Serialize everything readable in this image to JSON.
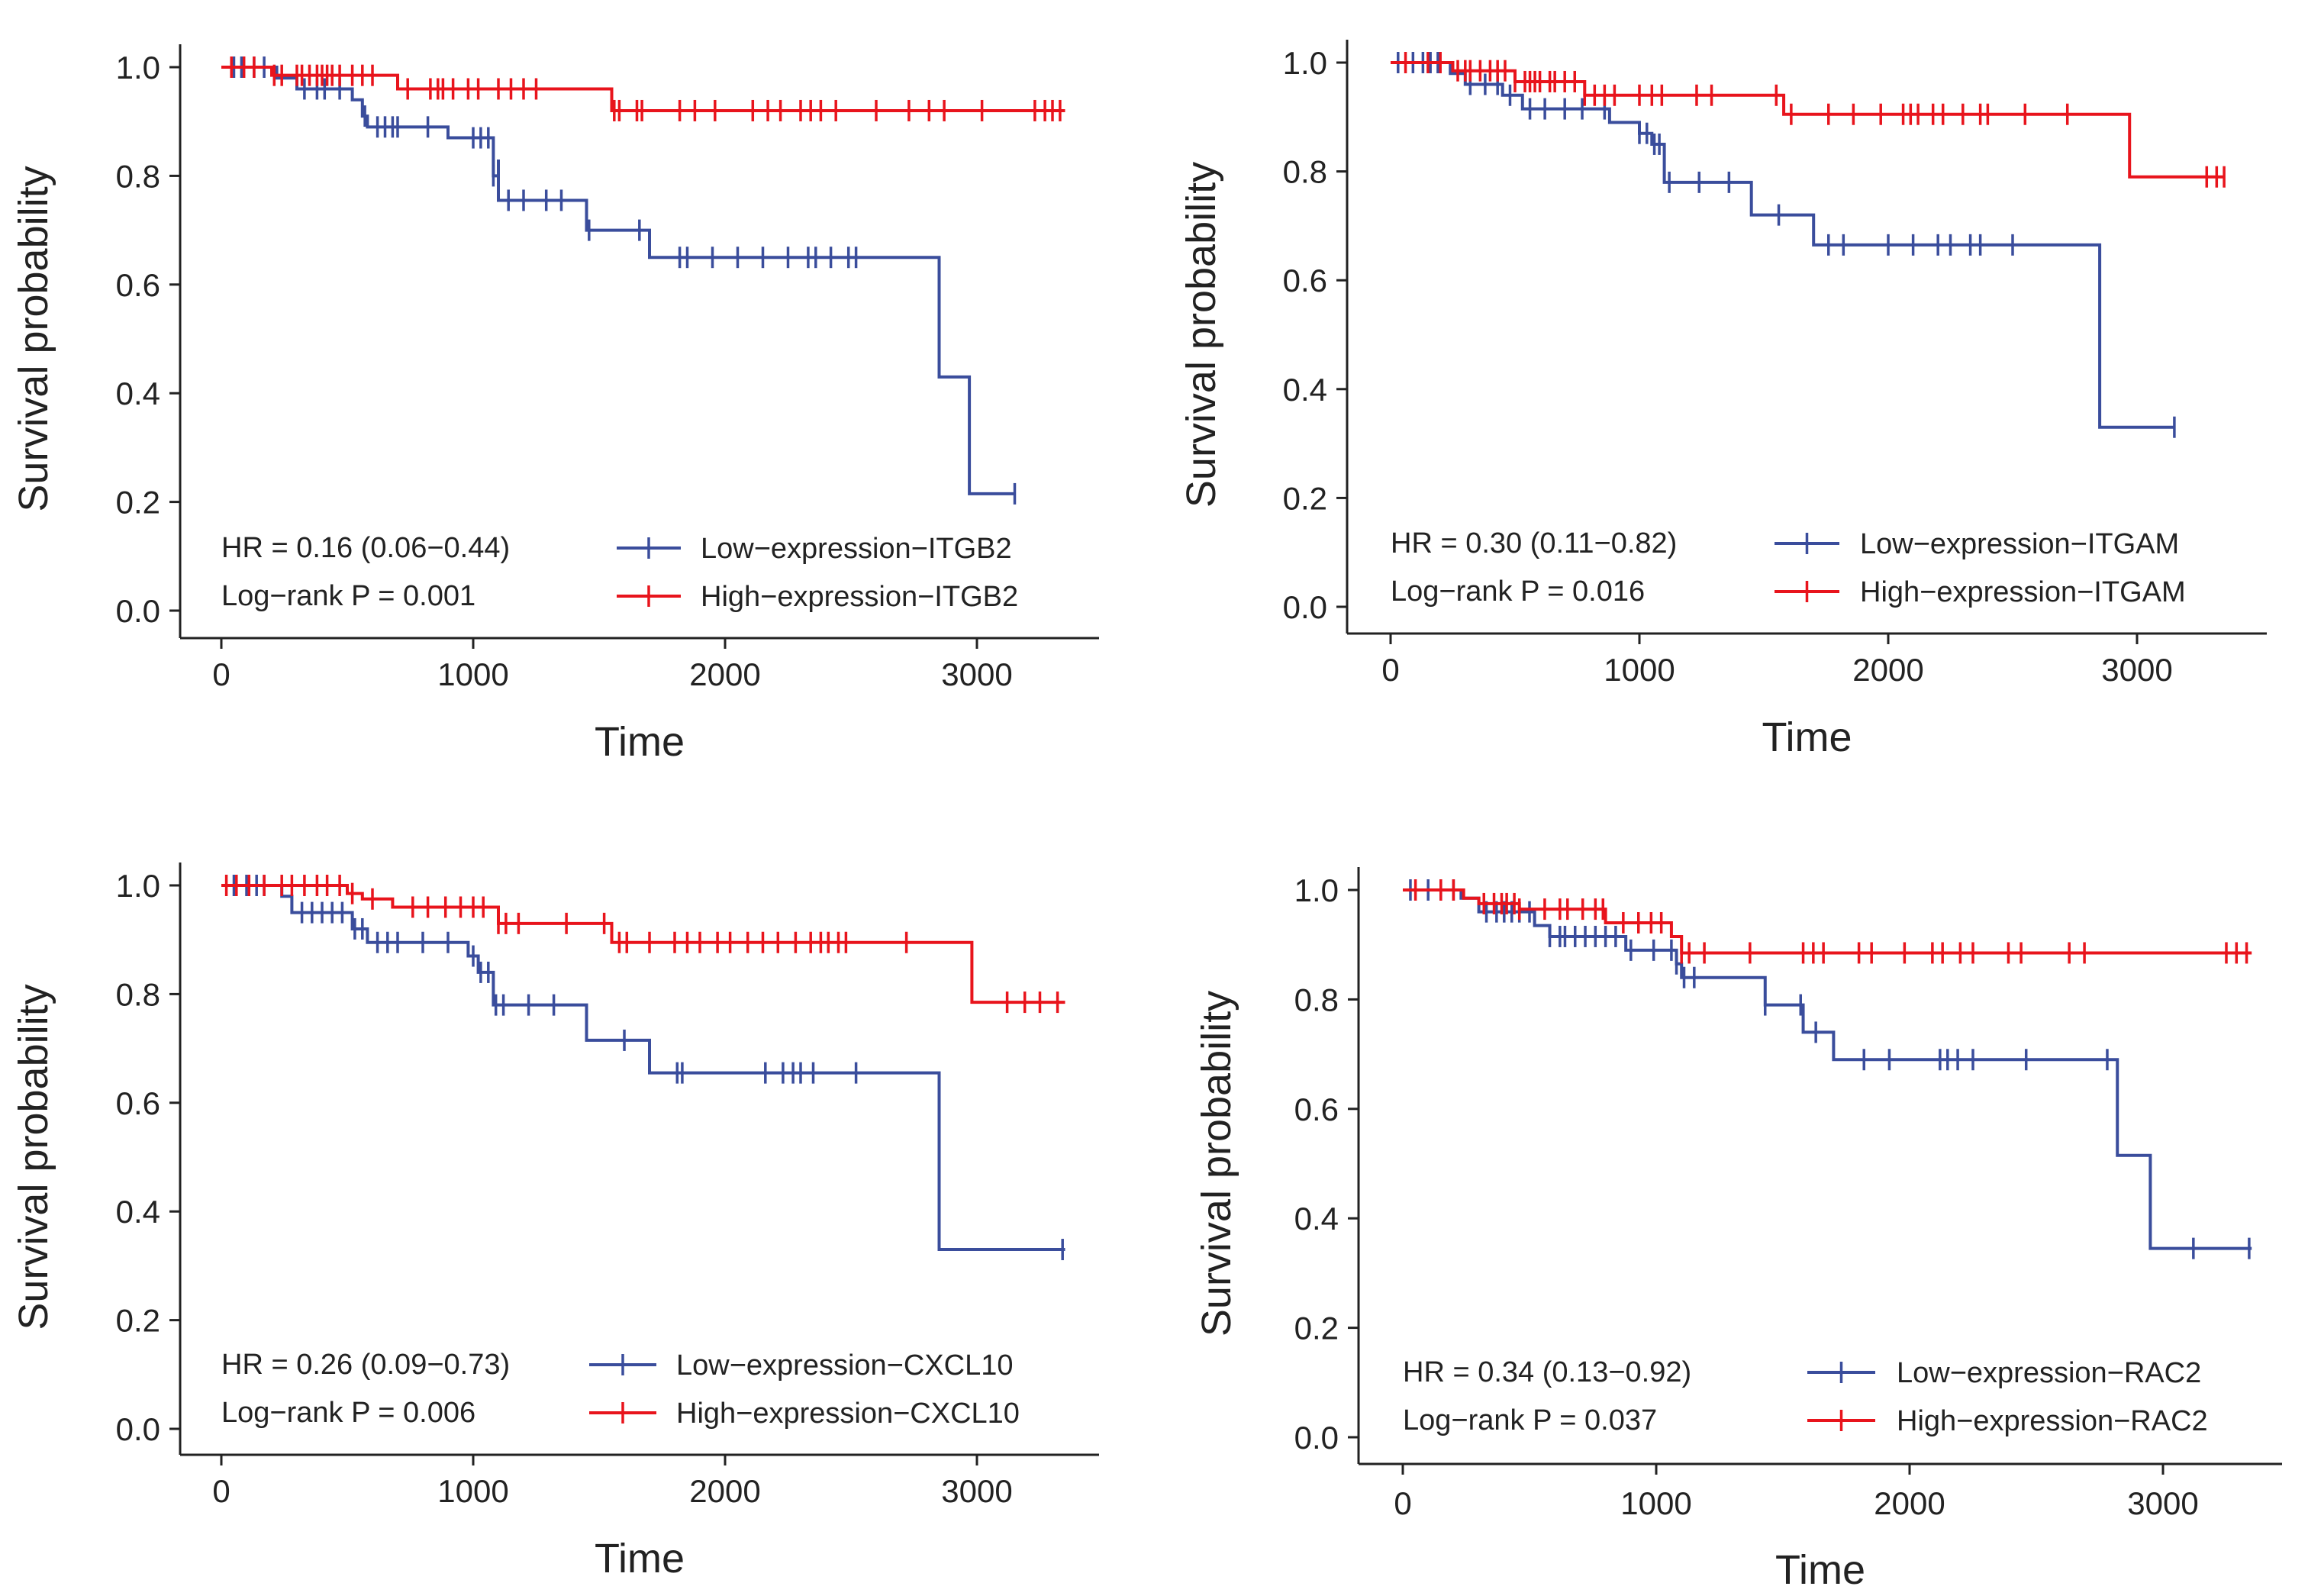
{
  "chart_data": [
    {
      "type": "line",
      "subtype": "kaplan-meier",
      "title": "",
      "xlabel": "Time",
      "ylabel": "Survival probability",
      "xlim": [
        0,
        3400
      ],
      "ylim": [
        0,
        1.0
      ],
      "xticks": [
        "0",
        "1000",
        "2000",
        "3000"
      ],
      "yticks": [
        "0.0",
        "0.2",
        "0.4",
        "0.6",
        "0.8",
        "1.0"
      ],
      "annotations": [
        "HR = 0.16 (0.06−0.44)",
        "Log−rank P = 0.001"
      ],
      "legend_position": "bottom-right",
      "series": [
        {
          "name": "Low−expression−ITGB2",
          "color": "#3a4d9c",
          "steps": [
            [
              0,
              1.0
            ],
            [
              220,
              0.98
            ],
            [
              300,
              0.96
            ],
            [
              520,
              0.94
            ],
            [
              560,
              0.91
            ],
            [
              580,
              0.89
            ],
            [
              900,
              0.87
            ],
            [
              1100,
              0.83
            ],
            [
              1080,
              0.8
            ],
            [
              1100,
              0.755
            ],
            [
              1450,
              0.7
            ],
            [
              1700,
              0.65
            ],
            [
              2850,
              0.43
            ],
            [
              2970,
              0.215
            ]
          ],
          "end": 3150,
          "censor": [
            50,
            80,
            130,
            170,
            330,
            380,
            410,
            470,
            570,
            620,
            650,
            680,
            700,
            820,
            1000,
            1030,
            1060,
            1080,
            1140,
            1200,
            1290,
            1350,
            1460,
            1660,
            1820,
            1850,
            1950,
            2050,
            2150,
            2250,
            2330,
            2360,
            2420,
            2490,
            2520,
            3150
          ]
        },
        {
          "name": "High−expression−ITGB2",
          "color": "#e8141c",
          "steps": [
            [
              0,
              1.0
            ],
            [
              200,
              0.985
            ],
            [
              700,
              0.96
            ],
            [
              1550,
              0.92
            ]
          ],
          "end": 3350,
          "censor": [
            40,
            90,
            130,
            210,
            240,
            300,
            320,
            350,
            380,
            400,
            420,
            440,
            470,
            520,
            560,
            600,
            740,
            830,
            860,
            880,
            920,
            980,
            1020,
            1100,
            1150,
            1200,
            1250,
            1560,
            1580,
            1650,
            1670,
            1820,
            1880,
            1960,
            2110,
            2170,
            2220,
            2300,
            2340,
            2380,
            2440,
            2600,
            2730,
            2810,
            2870,
            3020,
            3230,
            3270,
            3300,
            3330
          ]
        }
      ]
    },
    {
      "type": "line",
      "subtype": "kaplan-meier",
      "title": "",
      "xlabel": "Time",
      "ylabel": "Survival probability",
      "xlim": [
        0,
        3400
      ],
      "ylim": [
        0,
        1.0
      ],
      "xticks": [
        "0",
        "1000",
        "2000",
        "3000"
      ],
      "yticks": [
        "0.0",
        "0.2",
        "0.4",
        "0.6",
        "0.8",
        "1.0"
      ],
      "annotations": [
        "HR = 0.30 (0.11−0.82)",
        "Log−rank P = 0.016"
      ],
      "legend_position": "bottom-right",
      "series": [
        {
          "name": "Low−expression−ITGAM",
          "color": "#3a4d9c",
          "steps": [
            [
              0,
              1.0
            ],
            [
              240,
              0.98
            ],
            [
              300,
              0.96
            ],
            [
              450,
              0.94
            ],
            [
              530,
              0.915
            ],
            [
              880,
              0.89
            ],
            [
              1000,
              0.87
            ],
            [
              1050,
              0.85
            ],
            [
              1100,
              0.78
            ],
            [
              1450,
              0.72
            ],
            [
              1700,
              0.665
            ],
            [
              2850,
              0.33
            ]
          ],
          "end": 3150,
          "censor": [
            30,
            90,
            130,
            160,
            190,
            320,
            380,
            430,
            480,
            560,
            620,
            700,
            770,
            860,
            1000,
            1030,
            1060,
            1080,
            1120,
            1240,
            1360,
            1560,
            1760,
            1820,
            2000,
            2100,
            2200,
            2250,
            2330,
            2370,
            2500,
            3150
          ]
        },
        {
          "name": "High−expression−ITGAM",
          "color": "#e8141c",
          "steps": [
            [
              0,
              1.0
            ],
            [
              250,
              0.985
            ],
            [
              500,
              0.965
            ],
            [
              780,
              0.94
            ],
            [
              1580,
              0.905
            ],
            [
              2970,
              0.79
            ]
          ],
          "end": 3350,
          "censor": [
            60,
            150,
            200,
            270,
            300,
            320,
            360,
            400,
            430,
            460,
            500,
            540,
            560,
            580,
            600,
            640,
            660,
            700,
            740,
            780,
            820,
            860,
            900,
            1000,
            1050,
            1090,
            1230,
            1290,
            1550,
            1610,
            1760,
            1860,
            1970,
            2060,
            2090,
            2120,
            2180,
            2220,
            2300,
            2370,
            2400,
            2550,
            2720,
            3280,
            3320,
            3350
          ]
        }
      ]
    },
    {
      "type": "line",
      "subtype": "kaplan-meier",
      "title": "",
      "xlabel": "Time",
      "ylabel": "Survival probability",
      "xlim": [
        0,
        3400
      ],
      "ylim": [
        0,
        1.0
      ],
      "xticks": [
        "0",
        "1000",
        "2000",
        "3000"
      ],
      "yticks": [
        "0.0",
        "0.2",
        "0.4",
        "0.6",
        "0.8",
        "1.0"
      ],
      "annotations": [
        "HR = 0.26 (0.09−0.73)",
        "Log−rank P = 0.006"
      ],
      "legend_position": "bottom-right",
      "series": [
        {
          "name": "Low−expression−CXCL10",
          "color": "#3a4d9c",
          "steps": [
            [
              0,
              1.0
            ],
            [
              240,
              0.98
            ],
            [
              280,
              0.95
            ],
            [
              520,
              0.92
            ],
            [
              580,
              0.895
            ],
            [
              980,
              0.87
            ],
            [
              1020,
              0.84
            ],
            [
              1080,
              0.78
            ],
            [
              1450,
              0.715
            ],
            [
              1700,
              0.655
            ],
            [
              2850,
              0.33
            ]
          ],
          "end": 3350,
          "censor": [
            50,
            100,
            140,
            170,
            320,
            360,
            400,
            440,
            480,
            530,
            560,
            620,
            660,
            700,
            800,
            900,
            1000,
            1030,
            1060,
            1090,
            1120,
            1220,
            1320,
            1600,
            1810,
            1830,
            2160,
            2230,
            2270,
            2300,
            2350,
            2520,
            3340
          ]
        },
        {
          "name": "High−expression−CXCL10",
          "color": "#e8141c",
          "steps": [
            [
              0,
              1.0
            ],
            [
              500,
              0.985
            ],
            [
              560,
              0.975
            ],
            [
              680,
              0.96
            ],
            [
              1100,
              0.93
            ],
            [
              1550,
              0.895
            ],
            [
              2980,
              0.785
            ]
          ],
          "end": 3350,
          "censor": [
            20,
            60,
            110,
            170,
            240,
            280,
            330,
            380,
            420,
            470,
            520,
            600,
            760,
            820,
            890,
            950,
            1000,
            1040,
            1100,
            1130,
            1180,
            1370,
            1520,
            1580,
            1610,
            1700,
            1800,
            1850,
            1900,
            1970,
            2020,
            2090,
            2150,
            2210,
            2280,
            2340,
            2380,
            2410,
            2450,
            2480,
            2720,
            3120,
            3190,
            3250,
            3320
          ]
        }
      ]
    },
    {
      "type": "line",
      "subtype": "kaplan-meier",
      "title": "",
      "xlabel": "Time",
      "ylabel": "Survival probability",
      "xlim": [
        0,
        3400
      ],
      "ylim": [
        0,
        1.0
      ],
      "xticks": [
        "0",
        "1000",
        "2000",
        "3000"
      ],
      "yticks": [
        "0.0",
        "0.2",
        "0.4",
        "0.6",
        "0.8",
        "1.0"
      ],
      "annotations": [
        "HR = 0.34 (0.13−0.92)",
        "Log−rank P = 0.037"
      ],
      "legend_position": "bottom-right",
      "series": [
        {
          "name": "Low−expression−RAC2",
          "color": "#3a4d9c",
          "steps": [
            [
              0,
              1.0
            ],
            [
              230,
              0.985
            ],
            [
              300,
              0.96
            ],
            [
              520,
              0.935
            ],
            [
              580,
              0.915
            ],
            [
              880,
              0.89
            ],
            [
              1080,
              0.865
            ],
            [
              1100,
              0.84
            ],
            [
              1430,
              0.79
            ],
            [
              1580,
              0.74
            ],
            [
              1700,
              0.69
            ],
            [
              2820,
              0.515
            ],
            [
              2950,
              0.345
            ]
          ],
          "end": 3350,
          "censor": [
            30,
            100,
            150,
            200,
            330,
            370,
            400,
            430,
            460,
            500,
            580,
            620,
            640,
            680,
            720,
            760,
            800,
            840,
            900,
            990,
            1060,
            1080,
            1110,
            1150,
            1430,
            1570,
            1630,
            1820,
            1920,
            2120,
            2150,
            2190,
            2250,
            2460,
            2780,
            3120,
            3340
          ]
        },
        {
          "name": "High−expression−RAC2",
          "color": "#e8141c",
          "steps": [
            [
              0,
              1.0
            ],
            [
              240,
              0.985
            ],
            [
              300,
              0.975
            ],
            [
              460,
              0.965
            ],
            [
              800,
              0.94
            ],
            [
              1060,
              0.915
            ],
            [
              1100,
              0.885
            ]
          ],
          "end": 3350,
          "censor": [
            50,
            150,
            200,
            320,
            360,
            390,
            410,
            440,
            460,
            560,
            620,
            650,
            710,
            760,
            790,
            870,
            930,
            980,
            1020,
            1100,
            1130,
            1190,
            1370,
            1580,
            1620,
            1660,
            1800,
            1850,
            1980,
            2090,
            2130,
            2200,
            2250,
            2390,
            2440,
            2630,
            2690,
            3250,
            3290,
            3330
          ]
        }
      ]
    }
  ]
}
